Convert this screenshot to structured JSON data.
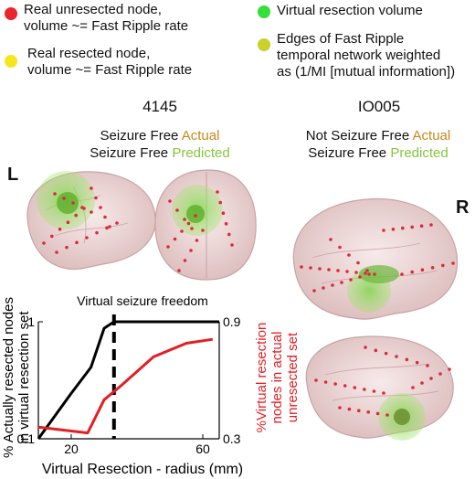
{
  "legend": {
    "unresected": {
      "text": "Real unresected node, volume ~= Fast Ripple rate",
      "line1": "Real unresected node,",
      "line2": "volume ~= Fast Ripple rate",
      "color": "#e8262b"
    },
    "resected": {
      "text": "Real resected node, volume ~= Fast Ripple rate",
      "line1": "Real resected node,",
      "line2": "volume ~= Fast Ripple rate",
      "color": "#f5e61e"
    },
    "virtual": {
      "text": "Virtual resection volume",
      "color": "#35e03a"
    },
    "edges": {
      "line1": "Edges of Fast Ripple",
      "line2": "temporal network weighted",
      "line3": "as (1/MI [mutual information])",
      "color": "#c9d12a"
    }
  },
  "patients": [
    {
      "id": "4145",
      "actual_status": "Seizure Free",
      "actual_label": "Actual",
      "predicted_status": "Seizure Free",
      "predicted_label": "Predicted"
    },
    {
      "id": "IO005",
      "actual_status": "Not Seizure Free",
      "actual_label": "Actual",
      "predicted_status": "Seizure Free",
      "predicted_label": "Predicted"
    }
  ],
  "hemisphere": {
    "left": "L",
    "right": "R"
  },
  "chart_data": {
    "type": "line",
    "title": "Virtual seizure freedom",
    "xlabel": "Virtual Resection - radius (mm)",
    "ylabel_left": "% Actually resected nodes in virtual resection set",
    "ylabel_left_line1": "% Actually resected nodes",
    "ylabel_left_line2": "in virtual resection set",
    "ylabel_right": "%Virtual resection nodes in actual unresected set",
    "ylabel_right_line1": "%Virtual resection",
    "ylabel_right_line2": "nodes in actual",
    "ylabel_right_line3": "unresected set",
    "xlim": [
      10,
      65
    ],
    "xticks": [
      "20",
      "60"
    ],
    "yticks_left": [
      "0.1",
      "1"
    ],
    "yticks_right": [
      "0.3",
      "0.9"
    ],
    "ylim_left": [
      0.1,
      1
    ],
    "ylim_right": [
      0.3,
      0.9
    ],
    "threshold_x": 33,
    "series": [
      {
        "axis": "left",
        "color": "#000000",
        "x": [
          10,
          20,
          26,
          30,
          33,
          65
        ],
        "y": [
          0.1,
          0.45,
          0.65,
          0.95,
          1.0,
          1.0
        ]
      },
      {
        "axis": "right",
        "color": "#e31e24",
        "x": [
          10,
          20,
          25,
          30,
          35,
          45,
          55,
          63
        ],
        "y": [
          0.36,
          0.34,
          0.33,
          0.5,
          0.57,
          0.72,
          0.79,
          0.81
        ]
      }
    ]
  }
}
